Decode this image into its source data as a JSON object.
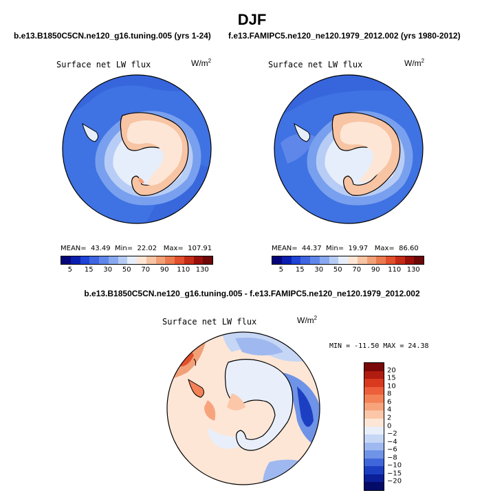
{
  "figure": {
    "title": "DJF",
    "diff_title": "b.e13.B1850C5CN.ne120_g16.tuning.005 - f.e13.FAMIPC5.ne120_ne120.1979_2012.002"
  },
  "panels": [
    {
      "case_title": "b.e13.B1850C5CN.ne120_g16.tuning.005 (yrs 1-24)",
      "variable": "Surface net LW flux",
      "units": "W/m",
      "units_exp": "2",
      "mean_label": "MEAN=",
      "mean": "43.49",
      "min_label": "Min=",
      "min": "22.02",
      "max_label": "Max=",
      "max": "107.91"
    },
    {
      "case_title": "f.e13.FAMIPC5.ne120_ne120.1979_2012.002 (yrs 1980-2012)",
      "variable": "Surface net LW flux",
      "units": "W/m",
      "units_exp": "2",
      "mean_label": "MEAN=",
      "mean": "44.37",
      "min_label": "Min=",
      "min": "19.97",
      "max_label": "Max=",
      "max": "86.60"
    },
    {
      "variable": "Surface net LW flux",
      "units": "W/m",
      "units_exp": "2",
      "minmax": "MIN = -11.50 MAX =  24.38"
    }
  ],
  "colorbar_abs": {
    "labels": [
      "5",
      "15",
      "30",
      "50",
      "70",
      "90",
      "110",
      "130"
    ],
    "colors": [
      "#05057a",
      "#0a1fb0",
      "#1f44d6",
      "#3f66e0",
      "#5f87ea",
      "#88a9f0",
      "#b6ccf5",
      "#e6eefb",
      "#fde6d6",
      "#f7c4a4",
      "#f2a077",
      "#ec7a4f",
      "#e24f2c",
      "#c42b17",
      "#980f0a",
      "#6e0707"
    ]
  },
  "colorbar_diff": {
    "labels": [
      "20",
      "15",
      "10",
      "8",
      "6",
      "4",
      "2",
      "0",
      "−2",
      "−4",
      "−6",
      "−8",
      "−10",
      "−15",
      "−20"
    ],
    "colors": [
      "#7a0808",
      "#b01c10",
      "#d9391f",
      "#ec5f3a",
      "#f38256",
      "#f7a47d",
      "#fbc7a8",
      "#fde6d6",
      "#e8effb",
      "#c6d6f5",
      "#9fb8ef",
      "#6f93e6",
      "#3f66da",
      "#1c3fc2",
      "#0b1f98",
      "#040c68"
    ]
  },
  "chart_data": {
    "type": "map",
    "projection": "south polar stereographic",
    "season": "DJF",
    "variable": "Surface net LW flux",
    "units": "W/m2",
    "maps": [
      {
        "name": "model",
        "mean": 43.49,
        "min": 22.02,
        "max": 107.91,
        "levels": [
          5,
          15,
          30,
          50,
          70,
          90,
          110,
          130
        ]
      },
      {
        "name": "obs/amip",
        "mean": 44.37,
        "min": 19.97,
        "max": 86.6,
        "levels": [
          5,
          15,
          30,
          50,
          70,
          90,
          110,
          130
        ]
      },
      {
        "name": "difference",
        "min": -11.5,
        "max": 24.38,
        "levels": [
          -20,
          -15,
          -10,
          -8,
          -6,
          -4,
          -2,
          0,
          2,
          4,
          6,
          8,
          10,
          15,
          20
        ]
      }
    ]
  }
}
